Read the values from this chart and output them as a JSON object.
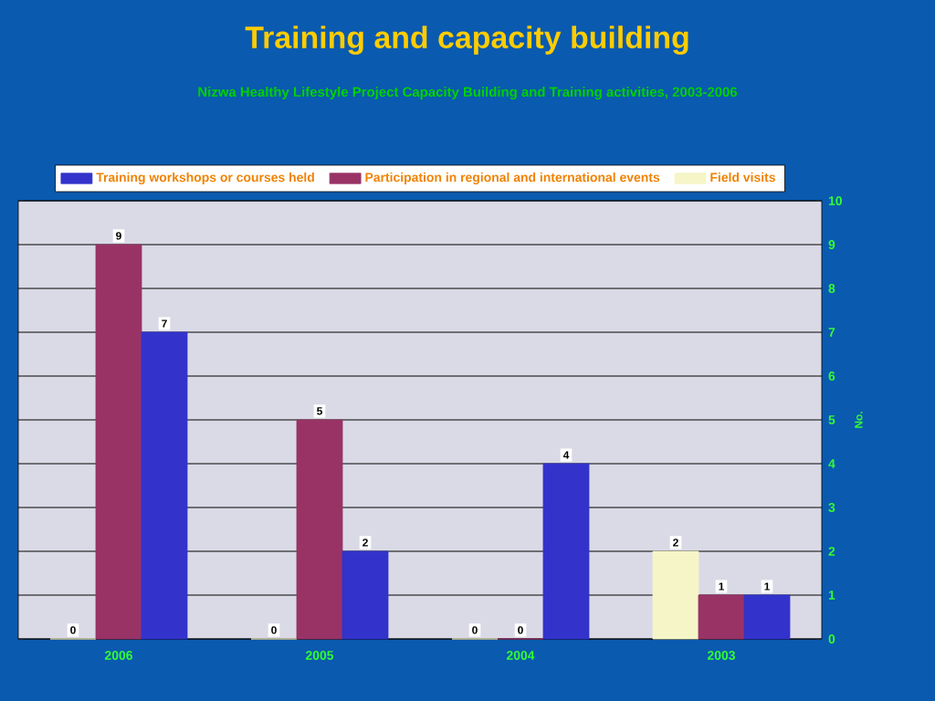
{
  "chart_data": {
    "type": "bar",
    "title": "Training and capacity building",
    "subtitle": "Nizwa Healthy Lifestyle Project Capacity Building and Training activities, 2003-2006",
    "ylabel": "No.",
    "categories": [
      "2006",
      "2005",
      "2004",
      "2003"
    ],
    "series": [
      {
        "name": "Field visits",
        "color": "#f5f5c8",
        "values": [
          0,
          0,
          0,
          2
        ]
      },
      {
        "name": "Participation in regional and international events",
        "color": "#993366",
        "values": [
          9,
          5,
          0,
          1
        ]
      },
      {
        "name": "Training workshops or courses held",
        "color": "#3333cc",
        "values": [
          7,
          2,
          4,
          1
        ]
      }
    ],
    "ylim": [
      0,
      10
    ],
    "yticks": [
      0,
      1,
      2,
      3,
      4,
      5,
      6,
      7,
      8,
      9,
      10
    ],
    "grid": "y",
    "legend": "top",
    "data_labels": true
  }
}
